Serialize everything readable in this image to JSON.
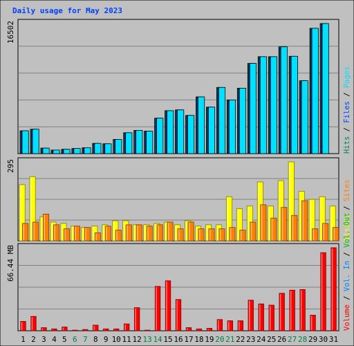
{
  "chart_data": [
    {
      "type": "bar",
      "title": "Daily usage for May 2023",
      "ylabel_parts": [
        {
          "text": "Hits",
          "color": "#00805c"
        },
        {
          "text": "Files",
          "color": "#0040ff"
        },
        {
          "text": "Pages",
          "color": "#00e0ff"
        }
      ],
      "y_max_label": "16502",
      "ylim": [
        0,
        16502
      ],
      "grid": true,
      "categories": [
        "1",
        "2",
        "3",
        "4",
        "5",
        "6",
        "7",
        "8",
        "9",
        "10",
        "11",
        "12",
        "13",
        "14",
        "15",
        "16",
        "17",
        "18",
        "19",
        "20",
        "21",
        "22",
        "23",
        "24",
        "25",
        "26",
        "27",
        "28",
        "29",
        "30",
        "31"
      ],
      "weekend_days": [
        "6",
        "7",
        "13",
        "14",
        "20",
        "21",
        "27",
        "28"
      ],
      "series": [
        {
          "name": "Hits",
          "color": "#00805c",
          "values": [
            2900,
            3100,
            700,
            450,
            550,
            650,
            750,
            1300,
            1250,
            1800,
            2650,
            2950,
            2850,
            4500,
            5450,
            5550,
            4850,
            7200,
            5900,
            8400,
            6800,
            8300,
            11450,
            12300,
            12300,
            13550,
            12350,
            9250,
            15900,
            16502,
            0
          ]
        },
        {
          "name": "Files",
          "color": "#0040ff",
          "values": [
            2800,
            3000,
            650,
            420,
            500,
            600,
            700,
            1250,
            1200,
            1750,
            2600,
            2850,
            2800,
            4400,
            5300,
            5450,
            4750,
            7100,
            5800,
            8300,
            6700,
            8200,
            11300,
            12200,
            12200,
            13400,
            12200,
            9100,
            15800,
            16400,
            0
          ]
        },
        {
          "name": "Pages",
          "color": "#00e0ff",
          "values": [
            2900,
            3100,
            700,
            450,
            550,
            650,
            750,
            1300,
            1250,
            1800,
            2650,
            2950,
            2850,
            4500,
            5450,
            5550,
            4850,
            7200,
            5900,
            8400,
            6800,
            8300,
            11450,
            12300,
            12300,
            13550,
            12350,
            9250,
            15900,
            16502,
            0
          ]
        }
      ]
    },
    {
      "type": "bar",
      "ylabel_parts": [
        {
          "text": "Visits",
          "color": "#ffff00"
        },
        {
          "text": "Sites",
          "color": "#ff8000"
        }
      ],
      "y_max_label": "295",
      "ylim": [
        0,
        295
      ],
      "grid": true,
      "categories": [
        "1",
        "2",
        "3",
        "4",
        "5",
        "6",
        "7",
        "8",
        "9",
        "10",
        "11",
        "12",
        "13",
        "14",
        "15",
        "16",
        "17",
        "18",
        "19",
        "20",
        "21",
        "22",
        "23",
        "24",
        "25",
        "26",
        "27",
        "28",
        "29",
        "30",
        "31"
      ],
      "series": [
        {
          "name": "Visits",
          "color": "#ffff00",
          "values": [
            210,
            240,
            90,
            70,
            65,
            55,
            50,
            55,
            60,
            75,
            75,
            60,
            60,
            65,
            70,
            60,
            75,
            55,
            60,
            60,
            165,
            120,
            130,
            220,
            130,
            225,
            295,
            185,
            155,
            165,
            130
          ]
        },
        {
          "name": "Sites",
          "color": "#ff8000",
          "values": [
            65,
            70,
            100,
            60,
            45,
            55,
            50,
            30,
            55,
            40,
            60,
            60,
            55,
            60,
            70,
            45,
            70,
            45,
            45,
            45,
            50,
            40,
            70,
            135,
            85,
            125,
            95,
            150,
            45,
            65,
            50
          ]
        }
      ]
    },
    {
      "type": "bar",
      "ylabel_parts": [
        {
          "text": "Volume",
          "color": "#ff0000"
        },
        {
          "text": "Vol. In",
          "color": "#0080ff"
        },
        {
          "text": "Vol. Out",
          "color": "#00c000"
        }
      ],
      "y_max_label": "66.44 MB",
      "ylim": [
        0,
        66.44
      ],
      "grid": true,
      "categories": [
        "1",
        "2",
        "3",
        "4",
        "5",
        "6",
        "7",
        "8",
        "9",
        "10",
        "11",
        "12",
        "13",
        "14",
        "15",
        "16",
        "17",
        "18",
        "19",
        "20",
        "21",
        "22",
        "23",
        "24",
        "25",
        "26",
        "27",
        "28",
        "29",
        "30",
        "31"
      ],
      "series": [
        {
          "name": "Volume",
          "color": "#ff0000",
          "values": [
            7.5,
            11.5,
            2.5,
            1.5,
            3.0,
            0.5,
            1.0,
            4.5,
            1.5,
            1.5,
            5.5,
            18.5,
            0.5,
            35.5,
            40.0,
            25.0,
            2.5,
            1.5,
            2.0,
            9.0,
            8.0,
            8.0,
            24.5,
            21.5,
            20.5,
            30.0,
            32.5,
            33.0,
            12.5,
            62.5,
            66.44
          ]
        }
      ]
    }
  ],
  "colors": {
    "background": "#c0c0c0",
    "frame": "#ffffff",
    "title": "#0040ff",
    "weekday_label": "#000000",
    "weekend_label": "#008040",
    "separator": "#000000"
  }
}
